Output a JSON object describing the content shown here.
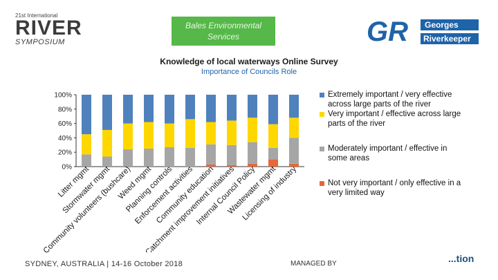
{
  "header": {
    "river_logo": {
      "line1": "21st International",
      "line2": "RIVER",
      "line3": "SYMPOSIUM"
    },
    "sponsor": {
      "line1": "Bales Environmental",
      "line2": "Services"
    },
    "gr_logo": {
      "mark": "GR",
      "line1": "Georges",
      "line2": "Riverkeeper"
    }
  },
  "chart_data": {
    "type": "bar",
    "stacked": true,
    "title": "Knowledge of local waterways Online Survey",
    "subtitle": "Importance of Councils Role",
    "ylim": [
      0,
      100
    ],
    "yticks": [
      "0%",
      "20%",
      "40%",
      "60%",
      "80%",
      "100%"
    ],
    "grid": false,
    "legend_position": "right",
    "categories": [
      "Litter mgmt",
      "Stormwater mgmt",
      "Community volunteers (bushcare)",
      "Weed mgmt",
      "Planning controls",
      "Enforcement activities",
      "Community education",
      "Catchment improvement initiatives",
      "Internal Council Policy",
      "Wastewater mgmt",
      "Licensing of industry"
    ],
    "series": [
      {
        "name": "Not very important / only effective in a very limited way",
        "color": "#e5673a",
        "values": [
          0,
          0,
          0,
          0,
          0,
          0,
          3,
          2,
          4,
          10,
          4
        ]
      },
      {
        "name": "Moderately important / effective in some areas",
        "color": "#a6a6a6",
        "values": [
          17,
          14,
          24,
          25,
          27,
          26,
          28,
          28,
          30,
          16,
          36
        ]
      },
      {
        "name": "Very important / effective across large parts of the river",
        "color": "#ffd700",
        "values": [
          28,
          37,
          36,
          37,
          33,
          40,
          31,
          34,
          34,
          33,
          28
        ]
      },
      {
        "name": "Extremely important / very effective across large parts of the river",
        "color": "#4f81bd",
        "values": [
          55,
          49,
          40,
          38,
          40,
          34,
          38,
          36,
          32,
          41,
          32
        ]
      }
    ]
  },
  "legend": [
    {
      "label": "Extremely important / very effective across large parts of the river",
      "color": "#4f81bd"
    },
    {
      "label": "Very important / effective across large parts of the river",
      "color": "#ffd700"
    },
    {
      "label": "Moderately important / effective in some areas",
      "color": "#a6a6a6"
    },
    {
      "label": "Not very important / only effective in a very limited way",
      "color": "#e5673a"
    }
  ],
  "footer": {
    "left": "SYDNEY, AUSTRALIA | 14-16 October 2018",
    "right": "MANAGED BY",
    "logo": "...tion"
  }
}
